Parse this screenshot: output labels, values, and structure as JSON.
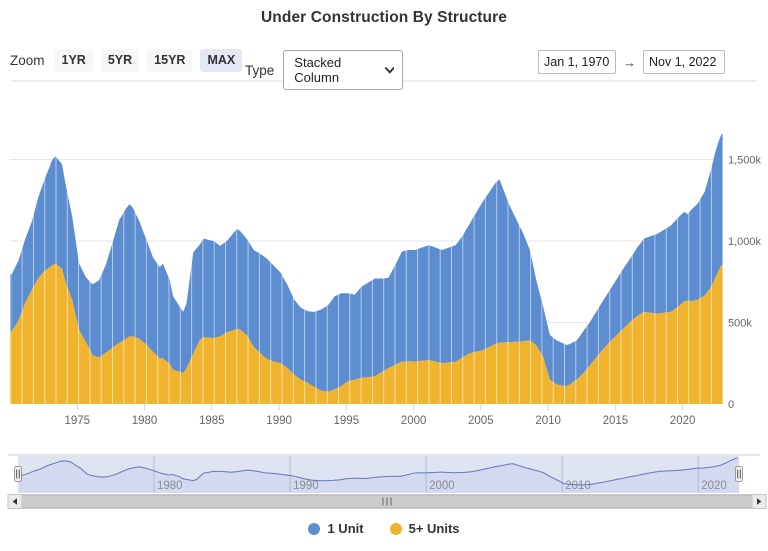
{
  "title": "Under Construction By Structure",
  "controls": {
    "zoom_label": "Zoom",
    "zoom_buttons": [
      "1YR",
      "5YR",
      "15YR",
      "MAX"
    ],
    "zoom_selected": "MAX",
    "type_label": "Type",
    "type_value": "Stacked Column",
    "date_from": "Jan 1, 1970",
    "date_arrow": "→",
    "date_to": "Nov 1, 2022"
  },
  "colors": {
    "unit1": "#5b8dd0",
    "unit5plus": "#f0b32e",
    "grid": "#e6e6e6",
    "axis_label": "#666666",
    "tick": "#ccd6eb",
    "seam": "rgba(255,255,255,0.55)",
    "navigator_mask": "#dfe4f3",
    "navigator_line": "#6d80c1",
    "navigator_gridline": "#b8bfd4",
    "navigator_label": "#8f8f8f",
    "scrollbar_thumb": "#cccccc",
    "zoom_selected_bg": "#e4e8f4"
  },
  "chart_data": {
    "type": "bar",
    "stacking": "stacked",
    "title": "Under Construction By Structure",
    "units": "thousands of housing units (k)",
    "x_start_year": 1970,
    "x_interval": "quarter",
    "x_end_label": "Nov 1, 2022",
    "ylim": [
      0,
      1700
    ],
    "grid": true,
    "legend_position": "bottom",
    "stack_order": [
      "5+ Units",
      "1 Unit"
    ],
    "yticks": [
      [
        0,
        "0"
      ],
      [
        500,
        "500k"
      ],
      [
        1000,
        "1,000k"
      ],
      [
        1500,
        "1,500k"
      ]
    ],
    "xticks_main": [
      1975,
      1980,
      1985,
      1990,
      1995,
      2000,
      2005,
      2010,
      2015,
      2020
    ],
    "xticks_navigator": [
      1980,
      1990,
      2000,
      2010,
      2020
    ],
    "navigator": {
      "shows": "total (1 Unit + 5+ Units)",
      "range_selected": "full"
    },
    "series": [
      {
        "name": "1 Unit",
        "color": "#5b8dd0",
        "values": [
          350,
          360,
          370,
          380,
          390,
          405,
          420,
          460,
          500,
          535,
          570,
          607,
          645,
          660,
          650,
          640,
          605,
          558,
          510,
          459,
          408,
          404,
          400,
          410,
          435,
          455,
          475,
          507,
          540,
          592,
          645,
          700,
          755,
          778,
          800,
          810,
          790,
          755,
          720,
          683,
          645,
          613,
          580,
          570,
          560,
          580,
          548,
          515,
          450,
          425,
          400,
          375,
          400,
          510,
          620,
          603,
          585,
          605,
          602,
          599,
          595,
          575,
          555,
          558,
          560,
          578,
          597,
          615,
          605,
          598,
          590,
          592,
          595,
          602,
          610,
          613,
          615,
          601,
          587,
          571,
          555,
          532,
          510,
          485,
          460,
          450,
          440,
          440,
          440,
          450,
          460,
          479,
          498,
          514,
          530,
          550,
          570,
          570,
          570,
          555,
          540,
          530,
          520,
          540,
          560,
          570,
          580,
          590,
          600,
          588,
          575,
          565,
          555,
          582,
          610,
          642,
          675,
          679,
          683,
          684,
          685,
          690,
          695,
          700,
          705,
          702,
          700,
          697,
          695,
          700,
          705,
          710,
          715,
          730,
          745,
          768,
          790,
          820,
          850,
          880,
          910,
          930,
          950,
          970,
          990,
          1005,
          950,
          895,
          840,
          796,
          753,
          709,
          665,
          613,
          560,
          480,
          400,
          355,
          310,
          292,
          275,
          272,
          270,
          265,
          260,
          252,
          249,
          244,
          240,
          249,
          258,
          261,
          265,
          274,
          282,
          291,
          300,
          310,
          320,
          332,
          345,
          357,
          370,
          380,
          390,
          405,
          420,
          435,
          450,
          460,
          470,
          480,
          490,
          500,
          510,
          520,
          530,
          537,
          545,
          548,
          550,
          530,
          560,
          575,
          590,
          613,
          635,
          678,
          720,
          765,
          790,
          805
        ]
      },
      {
        "name": "5+ Units",
        "color": "#f0b32e",
        "values": [
          445,
          477,
          510,
          565,
          620,
          660,
          700,
          737,
          775,
          797,
          820,
          835,
          850,
          860,
          845,
          830,
          745,
          692,
          640,
          548,
          457,
          418,
          380,
          345,
          300,
          292,
          285,
          300,
          315,
          330,
          345,
          360,
          375,
          387,
          400,
          415,
          415,
          407,
          400,
          382,
          365,
          342,
          320,
          300,
          280,
          280,
          262,
          245,
          210,
          203,
          197,
          190,
          220,
          265,
          310,
          352,
          395,
          410,
          408,
          406,
          405,
          410,
          415,
          427,
          440,
          447,
          453,
          460,
          455,
          437,
          420,
          385,
          350,
          330,
          310,
          292,
          275,
          267,
          260,
          255,
          250,
          235,
          220,
          200,
          180,
          165,
          150,
          140,
          130,
          117,
          105,
          93,
          82,
          78,
          75,
          82,
          90,
          100,
          110,
          125,
          140,
          145,
          150,
          155,
          160,
          162,
          165,
          167,
          170,
          182,
          195,
          207,
          220,
          230,
          240,
          250,
          260,
          261,
          262,
          261,
          260,
          262,
          265,
          267,
          270,
          265,
          260,
          255,
          250,
          252,
          255,
          257,
          260,
          272,
          285,
          297,
          310,
          315,
          320,
          325,
          330,
          340,
          350,
          360,
          370,
          375,
          377,
          378,
          380,
          381,
          382,
          383,
          385,
          387,
          390,
          375,
          360,
          325,
          290,
          220,
          150,
          135,
          120,
          116,
          112,
          110,
          120,
          136,
          150,
          170,
          190,
          215,
          240,
          265,
          290,
          315,
          340,
          362,
          385,
          405,
          425,
          445,
          465,
          485,
          505,
          522,
          540,
          552,
          565,
          562,
          560,
          557,
          555,
          557,
          560,
          562,
          565,
          580,
          595,
          612,
          630,
          635,
          630,
          635,
          640,
          652,
          665,
          692,
          720,
          765,
          810,
          850
        ]
      }
    ]
  }
}
